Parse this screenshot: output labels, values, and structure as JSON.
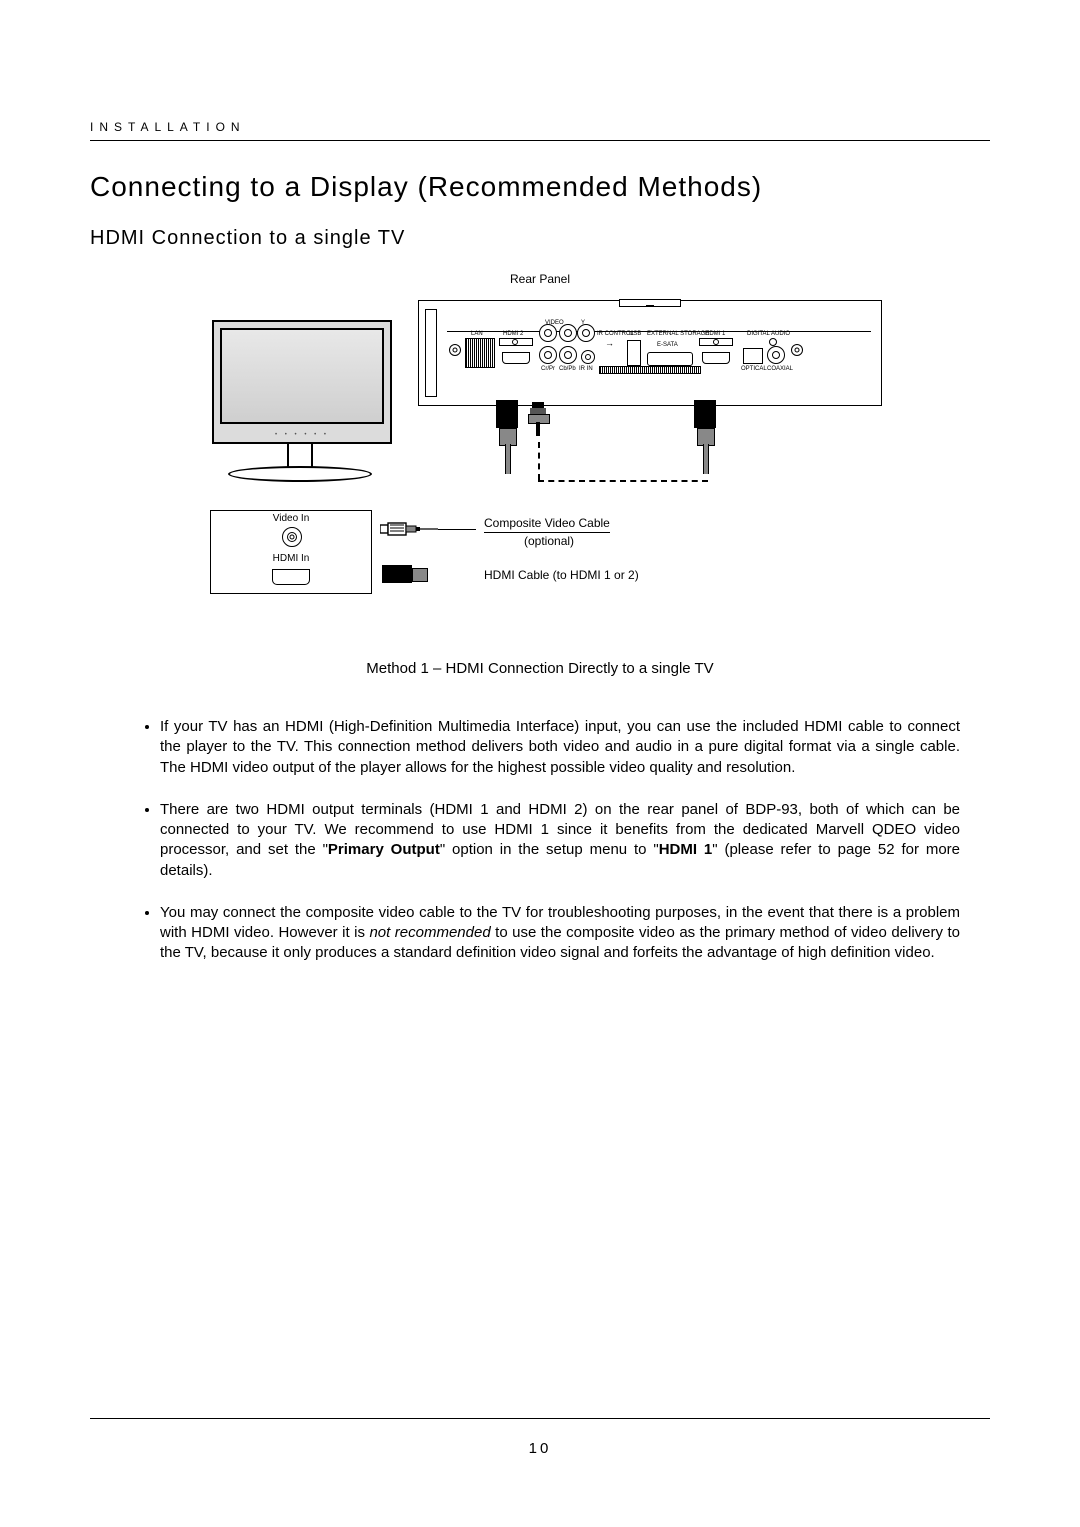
{
  "header": {
    "section_label": "INSTALLATION"
  },
  "titles": {
    "main": "Connecting to a Display (Recommended Methods)",
    "sub": "HDMI Connection to a single TV"
  },
  "diagram": {
    "rear_panel_label": "Rear Panel",
    "ports": {
      "lan": "LAN",
      "hdmi2": "HDMI  2",
      "video": "VIDEO",
      "y": "Y",
      "ir_control": "IR CONTROL",
      "usb": "USB",
      "external_storage": "EXTERNAL STORAGE",
      "hdmi1": "HDMI  1",
      "digital_audio": "DIGITAL AUDIO",
      "esata": "E-SATA",
      "cvpr": "Cr/Pr",
      "cbpb": "Cb/Pb",
      "ir_in": "IR IN",
      "optical": "OPTICAL",
      "coaxial": "COAXIAL"
    },
    "tv_inputs": {
      "video_in": "Video In",
      "hdmi_in": "HDMI In"
    },
    "cable_labels": {
      "composite": "Composite Video Cable",
      "composite_note": "(optional)",
      "hdmi": "HDMI Cable (to HDMI 1 or 2)"
    }
  },
  "method_caption": "Method 1 – HDMI Connection Directly to a single TV",
  "bullets": [
    {
      "parts": [
        {
          "text": "If your TV has an HDMI (High-Definition Multimedia Interface) input, you can use the included HDMI cable to connect the player to the TV.  This connection method delivers both video and audio in a pure digital format via a single cable. The HDMI video output of the player allows for the highest possible video quality and resolution."
        }
      ]
    },
    {
      "parts": [
        {
          "text": "There are two HDMI output terminals (HDMI 1 and HDMI 2) on the rear panel of BDP-93, both of which can be connected to your TV.  We recommend to use HDMI 1 since it benefits from the dedicated Marvell QDEO video processor, and set the \""
        },
        {
          "text": "Primary Output",
          "bold": true
        },
        {
          "text": "\" option in the setup menu to \""
        },
        {
          "text": "HDMI 1",
          "bold": true
        },
        {
          "text": "\" (please refer to page 52 for more details)."
        }
      ]
    },
    {
      "parts": [
        {
          "text": "You may connect the composite video cable to the TV for troubleshooting purposes, in the event that there is a problem with HDMI video.  However it is "
        },
        {
          "text": "not recommended",
          "italic": true
        },
        {
          "text": " to use the composite video as the primary method of video delivery to the TV, because it only produces a standard definition video signal and forfeits the advantage of high definition video."
        }
      ]
    }
  ],
  "footer": {
    "page_number": "10"
  },
  "colors": {
    "text": "#000000",
    "background": "#ffffff",
    "screen_fill": "#dcdcdc",
    "metal": "#888888"
  }
}
